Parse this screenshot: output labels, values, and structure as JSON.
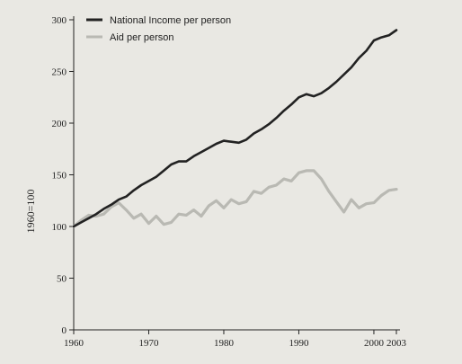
{
  "chart_data": {
    "type": "line",
    "title": "",
    "xlabel": "",
    "ylabel": "1960=100",
    "xlim": [
      1960,
      2003
    ],
    "ylim": [
      0,
      300
    ],
    "x_ticks": [
      1960,
      1970,
      1980,
      1990,
      2000,
      2003
    ],
    "x_tick_labels": [
      "1960",
      "1970",
      "1980",
      "1990",
      "2000",
      "2003"
    ],
    "y_ticks": [
      0,
      50,
      100,
      150,
      200,
      250,
      300
    ],
    "y_tick_labels": [
      "0",
      "50",
      "100",
      "150",
      "200",
      "250",
      "300"
    ],
    "grid": false,
    "legend_position": "top-left",
    "series": [
      {
        "name": "National Income per person",
        "color": "#222222",
        "style": "solid",
        "x": [
          1960,
          1961,
          1962,
          1963,
          1964,
          1965,
          1966,
          1967,
          1968,
          1969,
          1970,
          1971,
          1972,
          1973,
          1974,
          1975,
          1976,
          1977,
          1978,
          1979,
          1980,
          1981,
          1982,
          1983,
          1984,
          1985,
          1986,
          1987,
          1988,
          1989,
          1990,
          1991,
          1992,
          1993,
          1994,
          1995,
          1996,
          1997,
          1998,
          1999,
          2000,
          2001,
          2002,
          2003
        ],
        "y": [
          100,
          104,
          108,
          112,
          117,
          121,
          126,
          129,
          135,
          140,
          144,
          148,
          154,
          160,
          163,
          163,
          168,
          172,
          176,
          180,
          183,
          182,
          181,
          184,
          190,
          194,
          199,
          205,
          212,
          218,
          225,
          228,
          226,
          229,
          234,
          240,
          247,
          254,
          263,
          270,
          280,
          283,
          285,
          290
        ]
      },
      {
        "name": "Aid per person",
        "color": "#b9b9b3",
        "style": "solid",
        "x": [
          1960,
          1961,
          1962,
          1963,
          1964,
          1965,
          1966,
          1967,
          1968,
          1969,
          1970,
          1971,
          1972,
          1973,
          1974,
          1975,
          1976,
          1977,
          1978,
          1979,
          1980,
          1981,
          1982,
          1983,
          1984,
          1985,
          1986,
          1987,
          1988,
          1989,
          1990,
          1991,
          1992,
          1993,
          1994,
          1995,
          1996,
          1997,
          1998,
          1999,
          2000,
          2001,
          2002,
          2003
        ],
        "y": [
          100,
          106,
          111,
          110,
          112,
          119,
          123,
          116,
          108,
          112,
          103,
          110,
          102,
          104,
          112,
          111,
          116,
          110,
          120,
          125,
          118,
          126,
          122,
          124,
          134,
          132,
          138,
          140,
          146,
          144,
          152,
          154,
          154,
          146,
          134,
          124,
          114,
          126,
          118,
          122,
          123,
          130,
          135,
          136
        ]
      }
    ]
  }
}
